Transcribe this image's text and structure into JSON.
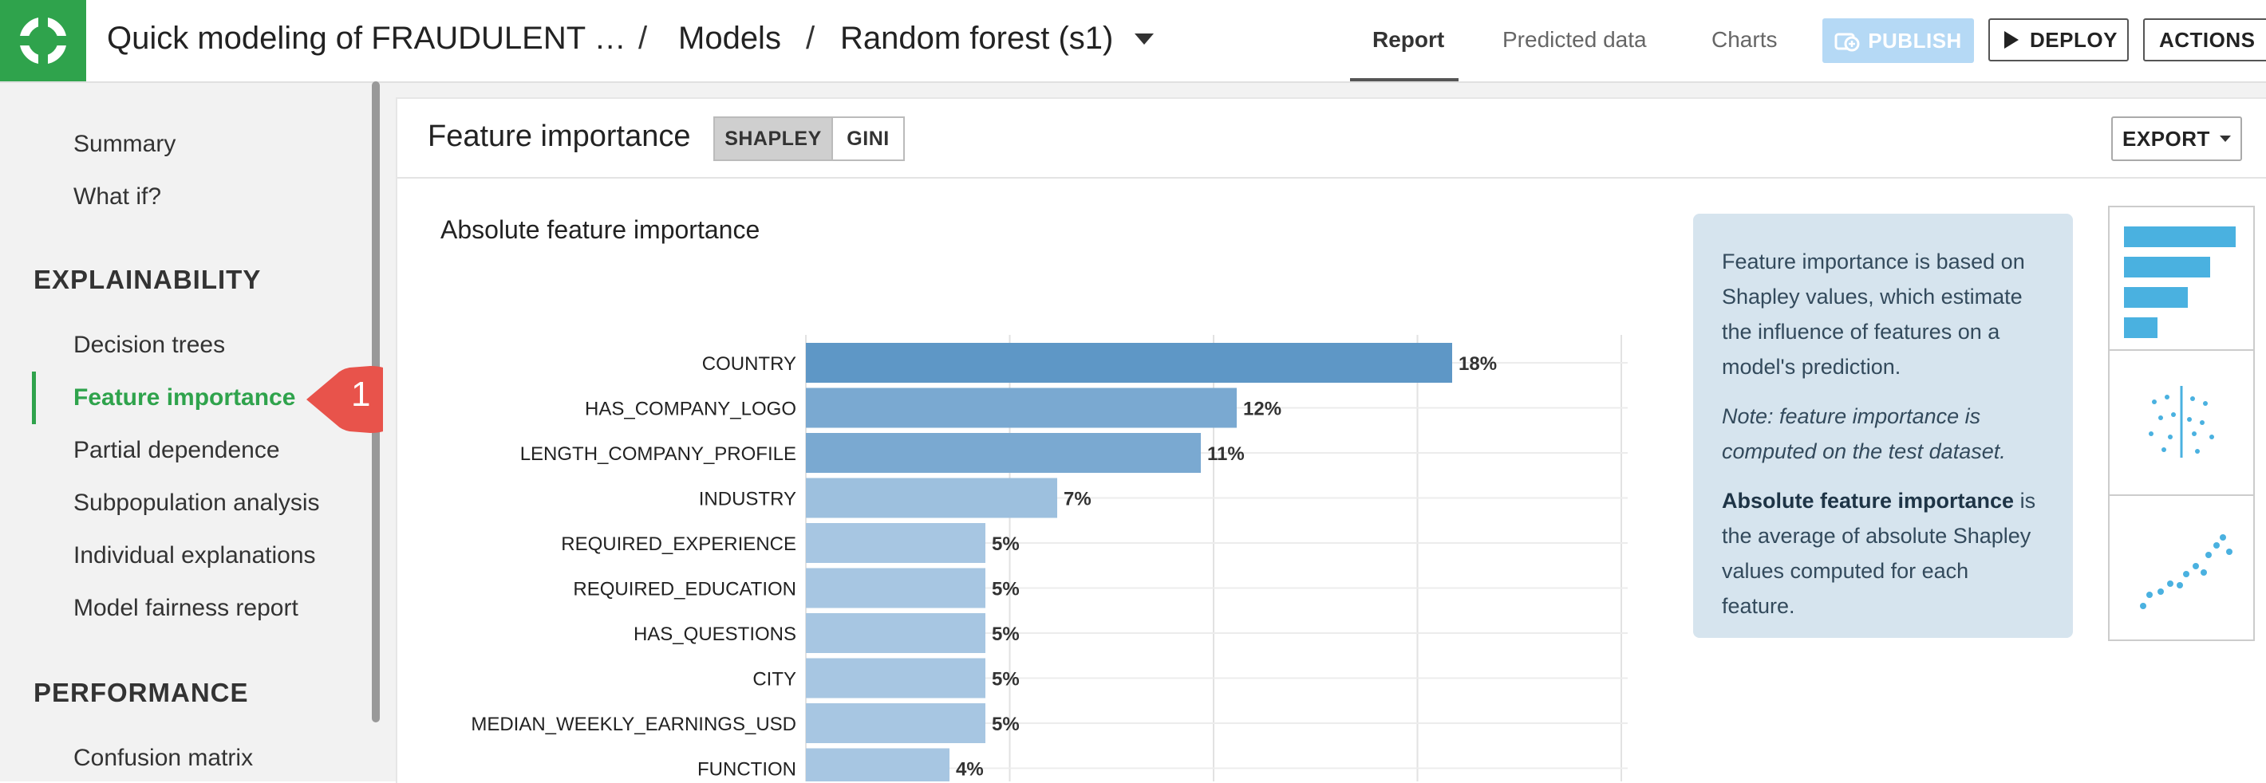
{
  "header": {
    "breadcrumbs": [
      "Quick modeling of FRAUDULENT …",
      "Models",
      "Random forest (s1)"
    ],
    "separator": "/",
    "tabs": [
      "Report",
      "Predicted data",
      "Charts"
    ],
    "active_tab": "Report",
    "publish_label": "PUBLISH",
    "deploy_label": "DEPLOY",
    "actions_label": "ACTIONS"
  },
  "sidebar": {
    "top_items": [
      "Summary",
      "What if?"
    ],
    "explainability_title": "EXPLAINABILITY",
    "explainability_items": [
      "Decision trees",
      "Feature importance",
      "Partial dependence",
      "Subpopulation analysis",
      "Individual explanations",
      "Model fairness report"
    ],
    "active_item": "Feature importance",
    "performance_title": "PERFORMANCE",
    "performance_items": [
      "Confusion matrix"
    ],
    "callout_number": "1"
  },
  "main": {
    "title": "Feature importance",
    "toggle": [
      "SHAPLEY",
      "GINI"
    ],
    "toggle_selected": "SHAPLEY",
    "export_label": "EXPORT",
    "chart_title": "Absolute feature importance"
  },
  "info": {
    "p1": "Feature importance is based on Shapley values, which estimate the influence of features on a model's prediction.",
    "note": "Note: feature importance is computed on the test dataset.",
    "p3_bold": "Absolute feature importance",
    "p3_rest": " is the average of absolute Shapley values computed for each feature."
  },
  "chart_data": {
    "type": "bar",
    "orientation": "horizontal",
    "title": "Absolute feature importance",
    "categories": [
      "COUNTRY",
      "HAS_COMPANY_LOGO",
      "LENGTH_COMPANY_PROFILE",
      "INDUSTRY",
      "REQUIRED_EXPERIENCE",
      "REQUIRED_EDUCATION",
      "HAS_QUESTIONS",
      "CITY",
      "MEDIAN_WEEKLY_EARNINGS_USD",
      "FUNCTION"
    ],
    "values": [
      18,
      12,
      11,
      7,
      5,
      5,
      5,
      5,
      5,
      4
    ],
    "labels": [
      "18%",
      "12%",
      "11%",
      "7%",
      "5%",
      "5%",
      "5%",
      "5%",
      "5%",
      "4%"
    ],
    "xlim": [
      0,
      20
    ],
    "grid": true,
    "colors": [
      "#5e97c6",
      "#7aa9d1",
      "#7aa9d1",
      "#9dc0de",
      "#a7c6e2",
      "#a7c6e2",
      "#a7c6e2",
      "#a7c6e2",
      "#a7c6e2",
      "#a7c6e2"
    ]
  },
  "colors": {
    "brand": "#2fa34c",
    "publish_bg": "#b5d9f5",
    "info_bg": "#d6e4ee",
    "thumb_blue": "#4ab1e0"
  }
}
